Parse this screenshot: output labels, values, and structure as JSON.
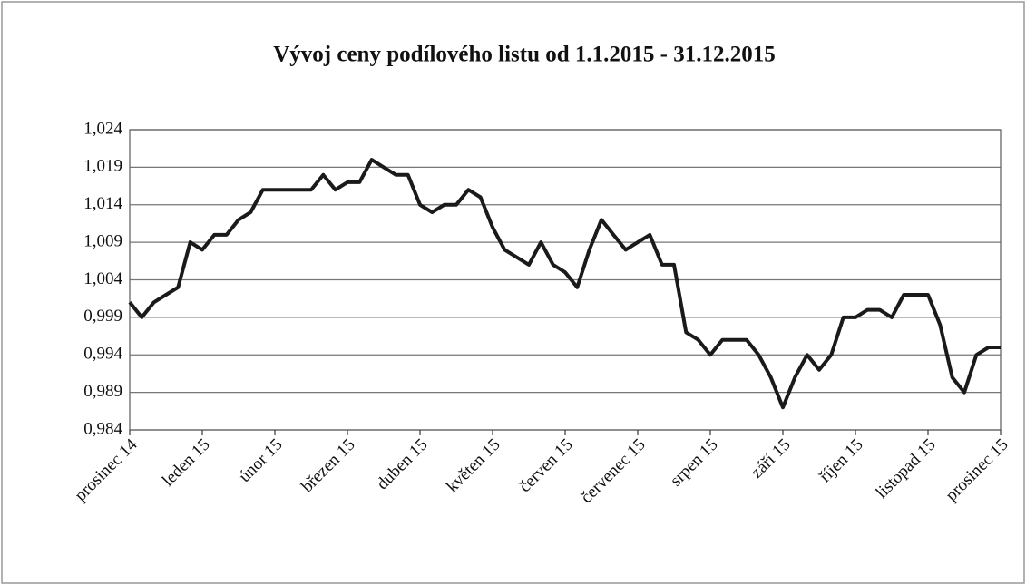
{
  "chart_data": {
    "type": "line",
    "title": "Vývoj ceny podílového listu od 1.1.2015 - 31.12.2015",
    "categories": [
      "prosinec 14",
      null,
      null,
      null,
      null,
      null,
      "leden 15",
      null,
      null,
      null,
      null,
      null,
      "únor 15",
      null,
      null,
      null,
      null,
      null,
      "březen 15",
      null,
      null,
      null,
      null,
      null,
      "duben 15",
      null,
      null,
      null,
      null,
      null,
      "květen 15",
      null,
      null,
      null,
      null,
      null,
      "červen 15",
      null,
      null,
      null,
      null,
      null,
      "červenec 15",
      null,
      null,
      null,
      null,
      null,
      "srpen 15",
      null,
      null,
      null,
      null,
      null,
      "září 15",
      null,
      null,
      null,
      null,
      null,
      "říjen 15",
      null,
      null,
      null,
      null,
      null,
      "listopad 15",
      null,
      null,
      null,
      null,
      null,
      "prosinec 15"
    ],
    "values": [
      1.001,
      0.999,
      1.001,
      1.002,
      1.003,
      1.009,
      1.008,
      1.01,
      1.01,
      1.012,
      1.013,
      1.016,
      1.016,
      1.016,
      1.016,
      1.016,
      1.018,
      1.016,
      1.017,
      1.017,
      1.02,
      1.019,
      1.018,
      1.018,
      1.014,
      1.013,
      1.014,
      1.014,
      1.016,
      1.015,
      1.011,
      1.008,
      1.007,
      1.006,
      1.009,
      1.006,
      1.005,
      1.003,
      1.008,
      1.012,
      1.01,
      1.008,
      1.009,
      1.01,
      1.006,
      1.006,
      0.997,
      0.996,
      0.994,
      0.996,
      0.996,
      0.996,
      0.994,
      0.991,
      0.987,
      0.991,
      0.994,
      0.992,
      0.994,
      0.999,
      0.999,
      1.0,
      1.0,
      0.999,
      1.002,
      1.002,
      1.002,
      0.998,
      0.991,
      0.989,
      0.994,
      0.995,
      0.995
    ],
    "color": "#1a1a1a",
    "ylim": [
      0.984,
      1.024
    ],
    "yticks": [
      {
        "value": 0.984,
        "label": "0,984"
      },
      {
        "value": 0.989,
        "label": "0,989"
      },
      {
        "value": 0.994,
        "label": "0,994"
      },
      {
        "value": 0.999,
        "label": "0,999"
      },
      {
        "value": 1.004,
        "label": "1,004"
      },
      {
        "value": 1.009,
        "label": "1,009"
      },
      {
        "value": 1.014,
        "label": "1,014"
      },
      {
        "value": 1.019,
        "label": "1,019"
      },
      {
        "value": 1.024,
        "label": "1,024"
      }
    ],
    "grid": true
  }
}
